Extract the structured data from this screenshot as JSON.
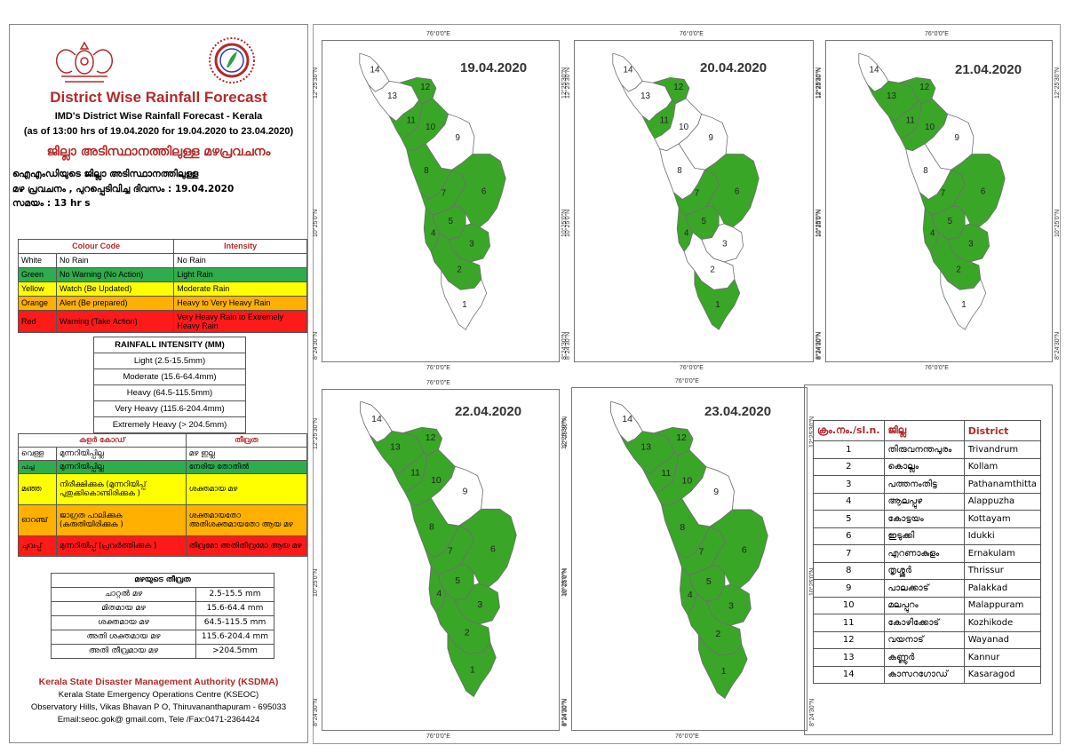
{
  "header": {
    "title": "District Wise Rainfall Forecast",
    "subtitle1": "IMD's District Wise Rainfall Forecast - Kerala",
    "subtitle2": "(as of 13:00 hrs of 19.04.2020  for 19.04.2020  to 23.04.2020)",
    "title_ml": "ജില്ലാ അടിസ്ഥാനത്തിലുള്ള മഴപ്രവചനം",
    "issue_line1": "ഐഎംഡിയുടെ ജില്ലാ അടിസ്ഥാനത്തിലുള്ള",
    "issue_line2": "മഴ പ്രവചനം , പുറപ്പെടിവിച്ച ദിവസം : 19.04.2020",
    "issue_line3": "സമയം : 13  hr s"
  },
  "colour_table": {
    "headers": [
      "Colour Code",
      "Intensity"
    ],
    "rows": [
      {
        "colour": "White",
        "meaning": "No Rain",
        "intensity": "No Rain",
        "cls": "c-white"
      },
      {
        "colour": "Green",
        "meaning": "No Warning (No Action)",
        "intensity": "Light Rain",
        "cls": "c-green"
      },
      {
        "colour": "Yellow",
        "meaning": "Watch (Be Updated)",
        "intensity": "Moderate Rain",
        "cls": "c-yellow"
      },
      {
        "colour": "Orange",
        "meaning": "Alert (Be prepared)",
        "intensity": "Heavy to Very Heavy Rain",
        "cls": "c-orange"
      },
      {
        "colour": "Red",
        "meaning": "Warning (Take Action)",
        "intensity": "Very Heavy Rain to Extremely Heavy Rain",
        "cls": "c-red"
      }
    ]
  },
  "intensity_table": {
    "title": "RAINFALL INTENSITY (MM)",
    "rows": [
      "Light (2.5-15.5mm)",
      "Moderate (15.6-64.4mm)",
      "Heavy (64.5-115.5mm)",
      "Very Heavy (115.6-204.4mm)",
      "Extremely Heavy (> 204.5mm)"
    ]
  },
  "colour_table_ml": {
    "headers": [
      "കളർ കോഡ്",
      "തീവ്രത"
    ],
    "rows": [
      {
        "colour": "വെള്ള",
        "meaning": "മുന്നറിയിപ്പില്ല",
        "intensity": "മഴ ഇല്ല",
        "cls": "c-white"
      },
      {
        "colour": "പച്ച",
        "meaning": "മുന്നറിയിപ്പില്ല",
        "intensity": "നേരിയ തോതിൽ",
        "cls": "c-green"
      },
      {
        "colour": "മഞ്ഞ",
        "meaning": "നിരീക്ഷിക്കുക (മുന്നറിയിപ്പ് പുതുക്കികൊണ്ടിരിക്കുക )",
        "intensity": "ശക്തമായ മഴ",
        "cls": "c-yellow"
      },
      {
        "colour": "ഓറഞ്ച്",
        "meaning": "ജാഗ്രത പാലിക്കുക (കരുതിയിരിക്കുക )",
        "intensity": "ശക്തമായതോ അതിശക്തമായതോ ആയ മഴ",
        "cls": "c-orange"
      },
      {
        "colour": "ചുവപ്പ്",
        "meaning": "മുന്നറിയിപ്പ് (പ്രവർത്തിക്കുക )",
        "intensity": "തീവ്രമോ അതിതീവ്രമോ ആയ മഴ",
        "cls": "c-red"
      }
    ]
  },
  "intensity_table_ml": {
    "title": "മഴയുടെ തീവ്രത",
    "rows": [
      {
        "label": "ചാറ്റൽ മഴ",
        "range": "2.5-15.5 mm"
      },
      {
        "label": "മിതമായ മഴ",
        "range": "15.6-64.4 mm"
      },
      {
        "label": "ശക്തമായ മഴ",
        "range": "64.5-115.5 mm"
      },
      {
        "label": "അതി ശക്തമായ മഴ",
        "range": "115.6-204.4 mm"
      },
      {
        "label": "അതി തീവ്രമായ മഴ",
        "range": ">204.5mm"
      }
    ]
  },
  "footer": {
    "org": "Kerala State Disaster Management Authority (KSDMA)",
    "line2": "Kerala State Emergency Operations Centre (KSEOC)",
    "line3": "Observatory Hills, Vikas Bhavan P O, Thiruvananthapuram - 695033",
    "line4": "Email:seoc.gok@ gmail.com, Tele /Fax:0471-2364424"
  },
  "axis_labels": {
    "lon": "76°0'0\"E",
    "lat_n": "12°25'30\"N",
    "lat_m": "10°25'0\"N",
    "lat_s": "8°24'30\"N"
  },
  "colors": {
    "green": "#3aa628",
    "white": "#ffffff",
    "border": "#6e6e6e",
    "title_red": "#b22a2a"
  },
  "maps": [
    {
      "date": "19.04.2020",
      "white": [
        1,
        9,
        13,
        14
      ]
    },
    {
      "date": "20.04.2020",
      "white": [
        3,
        2,
        8,
        9,
        10,
        13,
        14
      ]
    },
    {
      "date": "21.04.2020",
      "white": [
        1,
        8,
        9,
        14
      ]
    },
    {
      "date": "22.04.2020",
      "white": [
        9,
        14
      ]
    },
    {
      "date": "23.04.2020",
      "white": [
        9,
        14
      ]
    }
  ],
  "district_table": {
    "headers": [
      "ക്രം.നം./sl.n.",
      "ജില്ല",
      "District"
    ],
    "rows": [
      {
        "n": "1",
        "ml": "തിരുവനന്തപുരം",
        "en": "Trivandrum"
      },
      {
        "n": "2",
        "ml": "കൊല്ലം",
        "en": "Kollam"
      },
      {
        "n": "3",
        "ml": "പത്തനംതിട്ട",
        "en": "Pathanamthitta"
      },
      {
        "n": "4",
        "ml": "ആലപ്പുഴ",
        "en": "Alappuzha"
      },
      {
        "n": "5",
        "ml": "കോട്ടയം",
        "en": "Kottayam"
      },
      {
        "n": "6",
        "ml": "ഇടുക്കി",
        "en": "Idukki"
      },
      {
        "n": "7",
        "ml": "എറണാകുളം",
        "en": "Ernakulam"
      },
      {
        "n": "8",
        "ml": "തൃശ്ശൂർ",
        "en": "Thrissur"
      },
      {
        "n": "9",
        "ml": "പാലക്കാട്",
        "en": "Palakkad"
      },
      {
        "n": "10",
        "ml": "മലപ്പുറം",
        "en": "Malappuram"
      },
      {
        "n": "11",
        "ml": "കോഴിക്കോട്",
        "en": "Kozhikode"
      },
      {
        "n": "12",
        "ml": "വയനാട്",
        "en": "Wayanad"
      },
      {
        "n": "13",
        "ml": "കണ്ണൂർ",
        "en": "Kannur"
      },
      {
        "n": "14",
        "ml": "കാസറഗോഡ്",
        "en": "Kasaragod"
      }
    ]
  }
}
